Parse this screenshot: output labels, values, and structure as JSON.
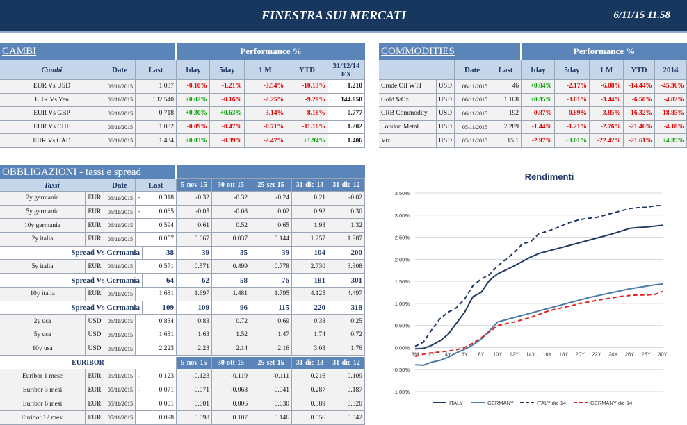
{
  "header": {
    "title": "FINESTRA SUI MERCATI",
    "datetime": "6/11/15 11.58"
  },
  "cambi": {
    "title": "CAMBI",
    "performance": "Performance  %",
    "columns": [
      "Cambi",
      "Date",
      "Last",
      "1day",
      "5day",
      "1 M",
      "YTD",
      "31/12/14 FX"
    ],
    "rows": [
      [
        "EUR Vs USD",
        "06/11/2015",
        "1.087",
        "-0.10%",
        "-1.21%",
        "-3.54%",
        "-10.13%",
        "1.210"
      ],
      [
        "EUR Vs Yen",
        "06/11/2015",
        "132.540",
        "+0.02%",
        "-0.16%",
        "-2.25%",
        "-9.29%",
        "144.850"
      ],
      [
        "EUR Vs GBP",
        "06/11/2015",
        "0.718",
        "+0.30%",
        "+0.63%",
        "-3.14%",
        "-8.18%",
        "0.777"
      ],
      [
        "EUR Vs CHF",
        "06/11/2015",
        "1.082",
        "-0.09%",
        "-0.47%",
        "-0.71%",
        "-11.16%",
        "1.202"
      ],
      [
        "EUR Vs CAD",
        "06/11/2015",
        "1.434",
        "+0.03%",
        "-0.39%",
        "-2.47%",
        "+1.94%",
        "1.406"
      ]
    ]
  },
  "commodities": {
    "title": "COMMODITIES",
    "performance": "Performance  %",
    "columns": [
      "Date",
      "Last",
      "1day",
      "5day",
      "1 M",
      "YTD",
      "2014"
    ],
    "rows": [
      [
        "Crude Oil WTI",
        "USD",
        "06/11/2015",
        "46",
        "+0.84%",
        "-2.17%",
        "-6.08%",
        "-14.44%",
        "-45.36%"
      ],
      [
        "Gold $/Oz",
        "USD",
        "06/11/2015",
        "1,108",
        "+0.35%",
        "-3.01%",
        "-3.44%",
        "-6.50%",
        "-4.82%"
      ],
      [
        "CRB Commodity",
        "USD",
        "06/11/2015",
        "192",
        "-0.87%",
        "-0.89%",
        "-3.85%",
        "-16.32%",
        "-18.85%"
      ],
      [
        "London Metal",
        "USD",
        "05/11/2015",
        "2,289",
        "-1.44%",
        "-1.21%",
        "-2.76%",
        "-21.46%",
        "-4.18%"
      ],
      [
        "Vix",
        "USD",
        "05/11/2015",
        "15.1",
        "-2.97%",
        "+3.01%",
        "-22.42%",
        "-21.61%",
        "+4.35%"
      ]
    ]
  },
  "obbligazioni": {
    "title": "OBBLIGAZIONI - tassi e spread",
    "columns": [
      "Tassi",
      "Date",
      "Last",
      "5-nov-15",
      "30-ott-15",
      "25-set-15",
      "31-dic-13",
      "31-dic-12"
    ],
    "rows": [
      {
        "name": "2y germania",
        "ccy": "EUR",
        "date": "06/11/2015",
        "flag": "-",
        "last": "0.318",
        "values": [
          "-0.32",
          "-0.32",
          "-0.24",
          "0.21",
          "-0.02"
        ]
      },
      {
        "name": "5y germania",
        "ccy": "EUR",
        "date": "06/11/2015",
        "flag": "-",
        "last": "0.065",
        "values": [
          "-0.05",
          "-0.08",
          "0.02",
          "0.92",
          "0.30"
        ]
      },
      {
        "name": "10y germania",
        "ccy": "EUR",
        "date": "06/11/2015",
        "last": "0.594",
        "values": [
          "0.61",
          "0.52",
          "0.65",
          "1.93",
          "1.32"
        ]
      },
      {
        "name": "2y italia",
        "ccy": "EUR",
        "date": "06/11/2015",
        "last": "0.057",
        "values": [
          "0.067",
          "0.037",
          "0.144",
          "1.257",
          "1.987"
        ]
      },
      {
        "spread": "Spread Vs Germania",
        "last": "38",
        "values": [
          "39",
          "35",
          "39",
          "104",
          "200"
        ]
      },
      {
        "name": "5y italia",
        "ccy": "EUR",
        "date": "06/11/2015",
        "last": "0.571",
        "values": [
          "0.571",
          "0.499",
          "0.778",
          "2.730",
          "3.308"
        ]
      },
      {
        "spread": "Spread Vs Germania",
        "last": "64",
        "values": [
          "62",
          "58",
          "76",
          "181",
          "301"
        ]
      },
      {
        "name": "10y italia",
        "ccy": "EUR",
        "date": "06/11/2015",
        "last": "1.681",
        "values": [
          "1.697",
          "1.481",
          "1.795",
          "4.125",
          "4.497"
        ]
      },
      {
        "spread": "Spread Vs Germania",
        "last": "109",
        "values": [
          "109",
          "96",
          "115",
          "220",
          "318"
        ]
      },
      {
        "name": "2y usa",
        "ccy": "USD",
        "date": "06/11/2015",
        "last": "0.834",
        "values": [
          "0.83",
          "0.72",
          "0.69",
          "0.38",
          "0.25"
        ]
      },
      {
        "name": "5y usa",
        "ccy": "USD",
        "date": "06/11/2015",
        "last": "1.631",
        "values": [
          "1.63",
          "1.52",
          "1.47",
          "1.74",
          "0.72"
        ]
      },
      {
        "name": "10y usa",
        "ccy": "USD",
        "date": "06/11/2015",
        "last": "2.223",
        "values": [
          "2.23",
          "2.14",
          "2.16",
          "3.03",
          "1.76"
        ]
      }
    ]
  },
  "euribor": {
    "title": "EURIBOR",
    "columns": [
      "5-nov-15",
      "30-ott-15",
      "25-set-15",
      "31-dic-13",
      "31-dic-12"
    ],
    "rows": [
      {
        "name": "Euribor 1 mese",
        "ccy": "EUR",
        "date": "05/11/2015",
        "flag": "-",
        "last": "0.123",
        "values": [
          "-0.123",
          "-0.119",
          "-0.111",
          "0.216",
          "0.109"
        ]
      },
      {
        "name": "Euribor 3 mesi",
        "ccy": "EUR",
        "date": "05/11/2015",
        "flag": "-",
        "last": "0.071",
        "values": [
          "-0.071",
          "-0.068",
          "-0.041",
          "0.287",
          "0.187"
        ]
      },
      {
        "name": "Euribor 6 mesi",
        "ccy": "EUR",
        "date": "05/11/2015",
        "last": "0.001",
        "values": [
          "0.001",
          "0.006",
          "0.030",
          "0.389",
          "0.320"
        ]
      },
      {
        "name": "Euribor 12 mesi",
        "ccy": "EUR",
        "date": "05/11/2015",
        "last": "0.098",
        "values": [
          "0.098",
          "0.107",
          "0.146",
          "0.556",
          "0.542"
        ]
      }
    ]
  },
  "chart_data": {
    "type": "line",
    "title": "Rendimenti",
    "categories": [
      "3M",
      null,
      "2Y",
      null,
      "4Y",
      null,
      "6Y",
      null,
      "8Y",
      null,
      "10Y",
      null,
      "12Y",
      null,
      "14Y",
      null,
      "16Y",
      null,
      "18Y",
      null,
      "20Y",
      null,
      "22Y",
      null,
      "24Y",
      null,
      "26Y",
      null,
      "28Y",
      null,
      "30Y"
    ],
    "ylim": [
      -1,
      3.5
    ],
    "yticks": [
      {
        "value": -1,
        "label": "-1.00%"
      },
      {
        "value": -0.5,
        "label": "-0.50%"
      },
      {
        "value": 0,
        "label": "0.00%"
      },
      {
        "value": 0.5,
        "label": "0.50%"
      },
      {
        "value": 1,
        "label": "1.00%"
      },
      {
        "value": 1.5,
        "label": "1.50%"
      },
      {
        "value": 2,
        "label": "2.00%"
      },
      {
        "value": 2.5,
        "label": "2.50%"
      },
      {
        "value": 3,
        "label": "3.00%"
      },
      {
        "value": 3.5,
        "label": "3.50%"
      }
    ],
    "grid": true,
    "series": [
      {
        "name": "ITALY",
        "color": "#1f3864",
        "dashed": false,
        "values": [
          -0.03,
          -0.02,
          0.05,
          0.15,
          0.3,
          0.55,
          0.8,
          1.15,
          1.25,
          1.52,
          1.67,
          1.76,
          1.85,
          1.95,
          2.05,
          2.13,
          2.18,
          2.23,
          2.28,
          2.33,
          2.38,
          2.43,
          2.48,
          2.53,
          2.58,
          2.64,
          2.7,
          2.72,
          2.73,
          2.75,
          2.77
        ]
      },
      {
        "name": "GERMANY",
        "color": "#4a7aa8",
        "dashed": false,
        "values": [
          -0.39,
          -0.4,
          -0.33,
          -0.29,
          -0.22,
          -0.12,
          -0.04,
          0.06,
          0.19,
          0.38,
          0.58,
          0.63,
          0.68,
          0.73,
          0.78,
          0.83,
          0.88,
          0.93,
          0.98,
          1.03,
          1.08,
          1.13,
          1.17,
          1.21,
          1.25,
          1.29,
          1.33,
          1.36,
          1.39,
          1.42,
          1.44
        ]
      },
      {
        "name": "ITALY dic-14",
        "color": "#1f3864",
        "dashed": true,
        "values": [
          0.03,
          0.12,
          0.4,
          0.65,
          0.8,
          0.9,
          1.1,
          1.4,
          1.55,
          1.65,
          1.85,
          2.0,
          2.15,
          2.35,
          2.4,
          2.58,
          2.63,
          2.7,
          2.78,
          2.85,
          2.9,
          2.93,
          2.95,
          3.0,
          3.05,
          3.1,
          3.15,
          3.17,
          3.18,
          3.21,
          3.22
        ]
      },
      {
        "name": "GERMANY dic-14",
        "color": "#e02020",
        "dashed": true,
        "values": [
          -0.2,
          -0.15,
          -0.12,
          -0.1,
          -0.08,
          -0.05,
          0.0,
          0.1,
          0.22,
          0.35,
          0.5,
          0.54,
          0.58,
          0.63,
          0.68,
          0.75,
          0.82,
          0.87,
          0.91,
          0.95,
          1.0,
          1.03,
          1.07,
          1.1,
          1.13,
          1.16,
          1.18,
          1.19,
          1.19,
          1.2,
          1.27
        ]
      }
    ]
  }
}
